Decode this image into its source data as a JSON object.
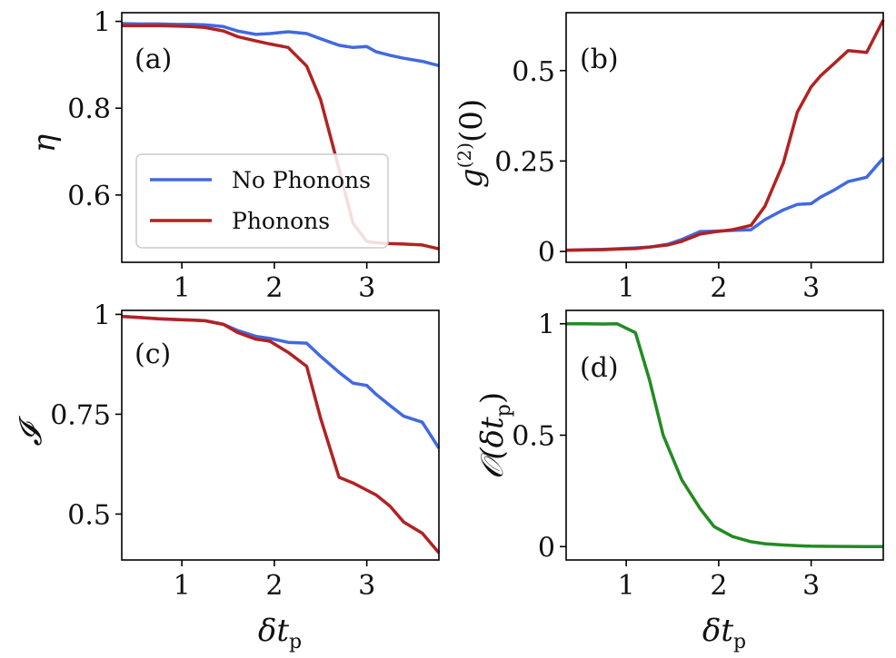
{
  "colors": {
    "no_phonons": "#4169e1",
    "phonons": "#b22222",
    "overlap": "#228b22",
    "axes": "#000000",
    "legend_border": "#cccccc"
  },
  "legend": {
    "entries": [
      "No Phonons",
      "Phonons"
    ],
    "placement": "panel (a), lower-left"
  },
  "shared_xlabel": "δt_p",
  "chart_data": [
    {
      "id": "a",
      "type": "line",
      "panel_label": "(a)",
      "ylabel": "η",
      "xlabel": "",
      "xlim": [
        0.35,
        3.78
      ],
      "ylim": [
        0.445,
        1.02
      ],
      "xticks": [
        1,
        2,
        3
      ],
      "yticks": [
        {
          "v": 1.0,
          "t": "1"
        },
        {
          "v": 0.8,
          "t": "0.8"
        },
        {
          "v": 0.6,
          "t": "0.6"
        }
      ],
      "legend": true,
      "series": [
        {
          "name": "No Phonons",
          "color_key": "no_phonons",
          "x": [
            0.35,
            0.55,
            0.75,
            0.95,
            1.1,
            1.25,
            1.45,
            1.6,
            1.8,
            1.95,
            2.15,
            2.35,
            2.5,
            2.7,
            2.85,
            3.0,
            3.1,
            3.25,
            3.4,
            3.6,
            3.78
          ],
          "y": [
            0.995,
            0.994,
            0.994,
            0.993,
            0.993,
            0.992,
            0.988,
            0.978,
            0.97,
            0.972,
            0.976,
            0.972,
            0.96,
            0.945,
            0.94,
            0.942,
            0.93,
            0.922,
            0.915,
            0.908,
            0.898
          ]
        },
        {
          "name": "Phonons",
          "color_key": "phonons",
          "x": [
            0.35,
            0.55,
            0.75,
            0.95,
            1.1,
            1.25,
            1.45,
            1.6,
            1.8,
            1.95,
            2.15,
            2.35,
            2.5,
            2.7,
            2.85,
            3.0,
            3.1,
            3.25,
            3.4,
            3.6,
            3.78
          ],
          "y": [
            0.99,
            0.99,
            0.99,
            0.989,
            0.988,
            0.986,
            0.978,
            0.965,
            0.955,
            0.948,
            0.94,
            0.897,
            0.82,
            0.66,
            0.535,
            0.493,
            0.49,
            0.488,
            0.487,
            0.485,
            0.476
          ]
        }
      ]
    },
    {
      "id": "b",
      "type": "line",
      "panel_label": "(b)",
      "ylabel": "g^(2)(0)",
      "xlabel": "",
      "xlim": [
        0.35,
        3.78
      ],
      "ylim": [
        -0.03,
        0.66
      ],
      "xticks": [
        1,
        2,
        3
      ],
      "yticks": [
        {
          "v": 0,
          "t": "0"
        },
        {
          "v": 0.25,
          "t": "0.25"
        },
        {
          "v": 0.5,
          "t": "0.5"
        }
      ],
      "legend": false,
      "series": [
        {
          "name": "No Phonons",
          "color_key": "no_phonons",
          "x": [
            0.35,
            0.55,
            0.75,
            0.95,
            1.1,
            1.25,
            1.45,
            1.6,
            1.8,
            1.95,
            2.15,
            2.35,
            2.5,
            2.7,
            2.85,
            3.0,
            3.1,
            3.25,
            3.4,
            3.6,
            3.78
          ],
          "y": [
            0.003,
            0.005,
            0.006,
            0.008,
            0.01,
            0.012,
            0.02,
            0.033,
            0.055,
            0.056,
            0.058,
            0.06,
            0.088,
            0.115,
            0.13,
            0.132,
            0.15,
            0.17,
            0.193,
            0.205,
            0.258
          ]
        },
        {
          "name": "Phonons",
          "color_key": "phonons",
          "x": [
            0.35,
            0.55,
            0.75,
            0.95,
            1.1,
            1.25,
            1.45,
            1.6,
            1.8,
            1.95,
            2.15,
            2.35,
            2.5,
            2.7,
            2.85,
            3.0,
            3.1,
            3.25,
            3.4,
            3.6,
            3.78
          ],
          "y": [
            0.003,
            0.004,
            0.005,
            0.007,
            0.008,
            0.012,
            0.018,
            0.028,
            0.048,
            0.054,
            0.06,
            0.072,
            0.125,
            0.245,
            0.385,
            0.455,
            0.485,
            0.52,
            0.555,
            0.55,
            0.64
          ]
        }
      ]
    },
    {
      "id": "c",
      "type": "line",
      "panel_label": "(c)",
      "ylabel": "𝓘",
      "xlabel": "δt_p",
      "xlim": [
        0.35,
        3.78
      ],
      "ylim": [
        0.385,
        1.01
      ],
      "xticks": [
        1,
        2,
        3
      ],
      "yticks": [
        {
          "v": 1.0,
          "t": "1"
        },
        {
          "v": 0.75,
          "t": "0.75"
        },
        {
          "v": 0.5,
          "t": "0.5"
        }
      ],
      "legend": false,
      "series": [
        {
          "name": "No Phonons",
          "color_key": "no_phonons",
          "x": [
            0.35,
            0.55,
            0.75,
            0.95,
            1.1,
            1.25,
            1.45,
            1.6,
            1.8,
            1.95,
            2.15,
            2.35,
            2.5,
            2.7,
            2.85,
            3.0,
            3.1,
            3.25,
            3.4,
            3.6,
            3.78
          ],
          "y": [
            0.995,
            0.992,
            0.989,
            0.987,
            0.986,
            0.984,
            0.975,
            0.96,
            0.945,
            0.94,
            0.93,
            0.928,
            0.895,
            0.855,
            0.828,
            0.822,
            0.8,
            0.772,
            0.745,
            0.73,
            0.665
          ]
        },
        {
          "name": "Phonons",
          "color_key": "phonons",
          "x": [
            0.35,
            0.55,
            0.75,
            0.95,
            1.1,
            1.25,
            1.45,
            1.6,
            1.8,
            1.95,
            2.15,
            2.35,
            2.5,
            2.7,
            2.85,
            3.0,
            3.1,
            3.25,
            3.4,
            3.6,
            3.78
          ],
          "y": [
            0.995,
            0.992,
            0.989,
            0.987,
            0.986,
            0.984,
            0.975,
            0.955,
            0.938,
            0.933,
            0.905,
            0.87,
            0.74,
            0.592,
            0.578,
            0.56,
            0.548,
            0.52,
            0.48,
            0.452,
            0.403
          ]
        }
      ]
    },
    {
      "id": "d",
      "type": "line",
      "panel_label": "(d)",
      "ylabel": "𝒪(δt_p)",
      "xlabel": "δt_p",
      "xlim": [
        0.35,
        3.78
      ],
      "ylim": [
        -0.06,
        1.06
      ],
      "xticks": [
        1,
        2,
        3
      ],
      "yticks": [
        {
          "v": 0,
          "t": "0"
        },
        {
          "v": 0.5,
          "t": "0.5"
        },
        {
          "v": 1,
          "t": "1"
        }
      ],
      "legend": false,
      "series": [
        {
          "name": "",
          "color_key": "overlap",
          "x": [
            0.35,
            0.55,
            0.75,
            0.9,
            1.1,
            1.25,
            1.4,
            1.6,
            1.8,
            1.95,
            2.15,
            2.35,
            2.5,
            2.7,
            2.85,
            3.0,
            3.2,
            3.4,
            3.6,
            3.78
          ],
          "y": [
            1.0,
            1.0,
            0.999,
            1.0,
            0.96,
            0.75,
            0.5,
            0.3,
            0.17,
            0.09,
            0.045,
            0.022,
            0.013,
            0.007,
            0.004,
            0.002,
            0.001,
            0.0005,
            0.0002,
            0.0001
          ]
        }
      ]
    }
  ]
}
